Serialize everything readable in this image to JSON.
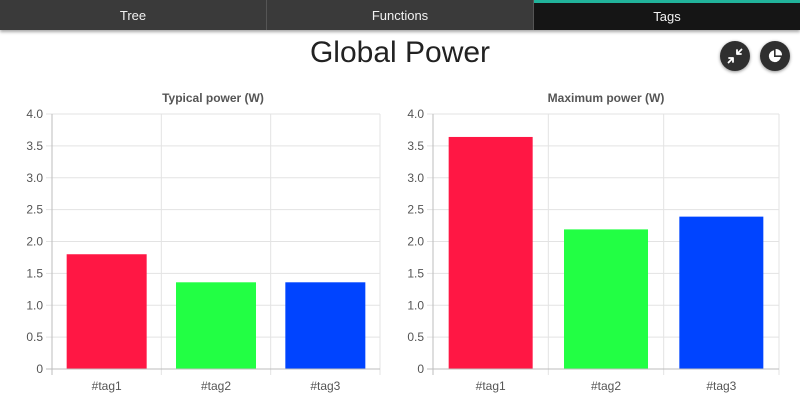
{
  "tabs": [
    {
      "label": "Tree",
      "active": false
    },
    {
      "label": "Functions",
      "active": false
    },
    {
      "label": "Tags",
      "active": true
    }
  ],
  "page_title": "Global Power",
  "actions": {
    "collapse_icon": "collapse-arrows-icon",
    "pie_icon": "pie-chart-icon"
  },
  "colors": {
    "accent": "#21b39b",
    "tag1": "#ff1744",
    "tag2": "#22ff44",
    "tag3": "#0044ff"
  },
  "chart_data": [
    {
      "type": "bar",
      "title": "Typical power (W)",
      "categories": [
        "#tag1",
        "#tag2",
        "#tag3"
      ],
      "values": [
        1.8,
        1.36,
        1.36
      ],
      "colors": [
        "#ff1744",
        "#22ff44",
        "#0044ff"
      ],
      "ylim": [
        0,
        4.0
      ],
      "yticks": [
        0,
        0.5,
        1.0,
        1.5,
        2.0,
        2.5,
        3.0,
        3.5,
        4.0
      ],
      "ytick_labels": [
        "0",
        "0.5",
        "1.0",
        "1.5",
        "2.0",
        "2.5",
        "3.0",
        "3.5",
        "4.0"
      ],
      "grid": true
    },
    {
      "type": "bar",
      "title": "Maximum power (W)",
      "categories": [
        "#tag1",
        "#tag2",
        "#tag3"
      ],
      "values": [
        3.64,
        2.19,
        2.39
      ],
      "colors": [
        "#ff1744",
        "#22ff44",
        "#0044ff"
      ],
      "ylim": [
        0,
        4.0
      ],
      "yticks": [
        0,
        0.5,
        1.0,
        1.5,
        2.0,
        2.5,
        3.0,
        3.5,
        4.0
      ],
      "ytick_labels": [
        "0",
        "0.5",
        "1.0",
        "1.5",
        "2.0",
        "2.5",
        "3.0",
        "3.5",
        "4.0"
      ],
      "grid": true
    }
  ]
}
